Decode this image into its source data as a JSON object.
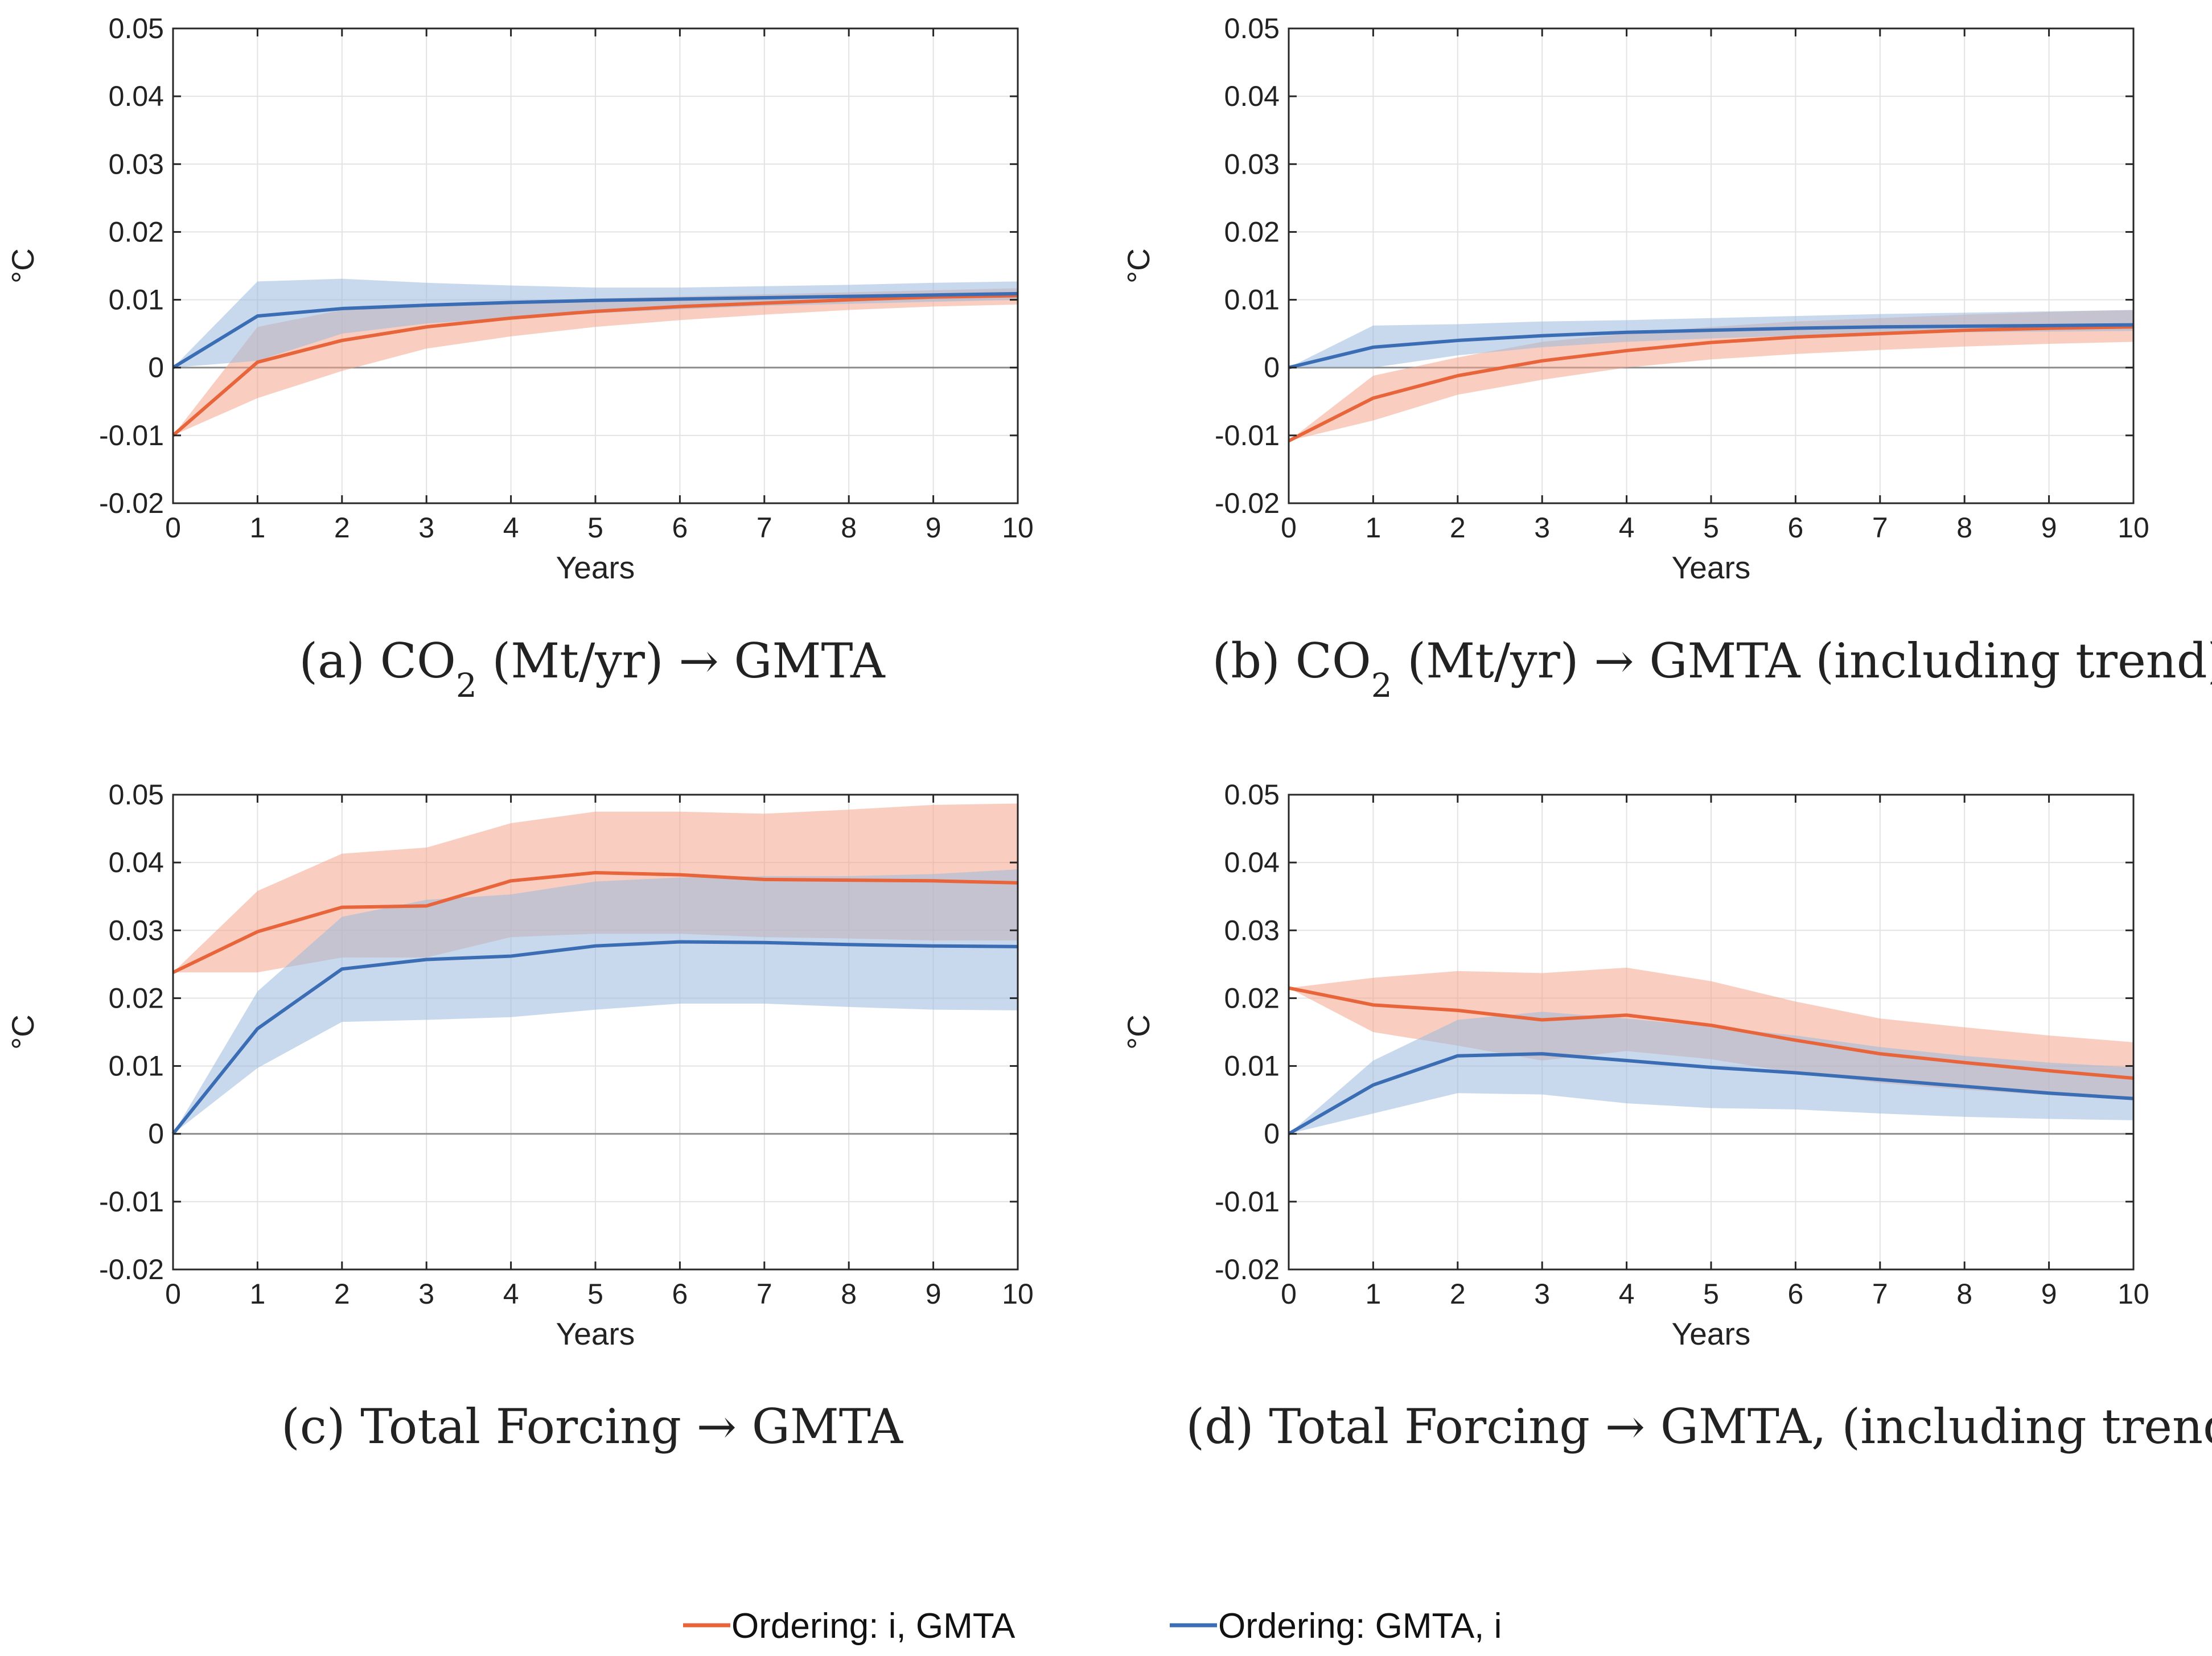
{
  "colors": {
    "orange": "#E8643A",
    "orange_band": "#F4A58C",
    "blue": "#3B6DB4",
    "blue_band": "#9DB9DF",
    "grid": "#E3E3E3",
    "axis": "#262626",
    "zero_line": "#8C8C8C"
  },
  "legend": {
    "items": [
      {
        "label": "Ordering: i, GMTA",
        "color": "#E8643A"
      },
      {
        "label": "Ordering: GMTA, i",
        "color": "#3B6DB4"
      }
    ]
  },
  "chart_data": [
    {
      "type": "line",
      "caption_prefix": "(a) CO",
      "caption_sub": "2",
      "caption_suffix": " (Mt/yr) → GMTA",
      "xlabel": "Years",
      "ylabel": "°C",
      "xlim": [
        0,
        10
      ],
      "ylim": [
        -0.02,
        0.05
      ],
      "xticks": [
        "0",
        "1",
        "2",
        "3",
        "4",
        "5",
        "6",
        "7",
        "8",
        "9",
        "10"
      ],
      "yticks": [
        "-0.02",
        "-0.01",
        "0",
        "0.01",
        "0.02",
        "0.03",
        "0.04",
        "0.05"
      ],
      "x": [
        0,
        1,
        2,
        3,
        4,
        5,
        6,
        7,
        8,
        9,
        10
      ],
      "series": [
        {
          "name": "Ordering: i, GMTA",
          "color": "orange",
          "values": [
            -0.01,
            0.0008,
            0.004,
            0.006,
            0.0073,
            0.0083,
            0.009,
            0.0095,
            0.01,
            0.0104,
            0.0106
          ],
          "lower": [
            -0.01,
            -0.0045,
            -0.0005,
            0.0028,
            0.0046,
            0.006,
            0.007,
            0.0078,
            0.0085,
            0.009,
            0.0093
          ],
          "upper": [
            -0.01,
            0.006,
            0.0085,
            0.0093,
            0.0098,
            0.0102,
            0.0105,
            0.0108,
            0.0111,
            0.0114,
            0.0117
          ]
        },
        {
          "name": "Ordering: GMTA, i",
          "color": "blue",
          "values": [
            0.0,
            0.0076,
            0.0087,
            0.0092,
            0.0096,
            0.0099,
            0.0101,
            0.0103,
            0.0105,
            0.0107,
            0.0109
          ],
          "lower": [
            0.0,
            0.001,
            0.005,
            0.0065,
            0.0073,
            0.008,
            0.0086,
            0.0091,
            0.0094,
            0.0097,
            0.01
          ],
          "upper": [
            0.0,
            0.0127,
            0.0131,
            0.0125,
            0.0121,
            0.0118,
            0.0118,
            0.012,
            0.0122,
            0.0125,
            0.0127
          ]
        }
      ]
    },
    {
      "type": "line",
      "caption_prefix": "(b) CO",
      "caption_sub": "2",
      "caption_suffix": " (Mt/yr) → GMTA (including trend)",
      "xlabel": "Years",
      "ylabel": "°C",
      "xlim": [
        0,
        10
      ],
      "ylim": [
        -0.02,
        0.05
      ],
      "xticks": [
        "0",
        "1",
        "2",
        "3",
        "4",
        "5",
        "6",
        "7",
        "8",
        "9",
        "10"
      ],
      "yticks": [
        "-0.02",
        "-0.01",
        "0",
        "0.01",
        "0.02",
        "0.03",
        "0.04",
        "0.05"
      ],
      "x": [
        0,
        1,
        2,
        3,
        4,
        5,
        6,
        7,
        8,
        9,
        10
      ],
      "series": [
        {
          "name": "Ordering: i, GMTA",
          "color": "orange",
          "values": [
            -0.0108,
            -0.0045,
            -0.0012,
            0.001,
            0.0025,
            0.0037,
            0.0045,
            0.005,
            0.0055,
            0.0058,
            0.006
          ],
          "lower": [
            -0.0108,
            -0.0078,
            -0.004,
            -0.0018,
            0.0,
            0.0012,
            0.002,
            0.0026,
            0.0031,
            0.0035,
            0.0038
          ],
          "upper": [
            -0.0108,
            -0.0012,
            0.0015,
            0.0038,
            0.005,
            0.006,
            0.0068,
            0.0073,
            0.0078,
            0.0082,
            0.0085
          ]
        },
        {
          "name": "Ordering: GMTA, i",
          "color": "blue",
          "values": [
            0.0,
            0.003,
            0.004,
            0.0047,
            0.0052,
            0.0055,
            0.0058,
            0.006,
            0.0061,
            0.0062,
            0.0063
          ],
          "lower": [
            0.0,
            0.0,
            0.0018,
            0.003,
            0.0038,
            0.0043,
            0.0047,
            0.005,
            0.0052,
            0.0053,
            0.0054
          ],
          "upper": [
            0.0,
            0.0062,
            0.0064,
            0.0068,
            0.007,
            0.0073,
            0.0076,
            0.0079,
            0.0081,
            0.0083,
            0.0085
          ]
        }
      ]
    },
    {
      "type": "line",
      "caption_prefix": "(c) Total Forcing → GMTA",
      "caption_sub": "",
      "caption_suffix": "",
      "xlabel": "Years",
      "ylabel": "°C",
      "xlim": [
        0,
        10
      ],
      "ylim": [
        -0.02,
        0.05
      ],
      "xticks": [
        "0",
        "1",
        "2",
        "3",
        "4",
        "5",
        "6",
        "7",
        "8",
        "9",
        "10"
      ],
      "yticks": [
        "-0.02",
        "-0.01",
        "0",
        "0.01",
        "0.02",
        "0.03",
        "0.04",
        "0.05"
      ],
      "x": [
        0,
        1,
        2,
        3,
        4,
        5,
        6,
        7,
        8,
        9,
        10
      ],
      "series": [
        {
          "name": "Ordering: i, GMTA",
          "color": "orange",
          "values": [
            0.0238,
            0.0298,
            0.0334,
            0.0336,
            0.0373,
            0.0385,
            0.0382,
            0.0375,
            0.0374,
            0.0373,
            0.037
          ],
          "lower": [
            0.0238,
            0.0238,
            0.026,
            0.026,
            0.029,
            0.0295,
            0.0295,
            0.029,
            0.0288,
            0.0285,
            0.0285
          ],
          "upper": [
            0.0238,
            0.0358,
            0.0413,
            0.0422,
            0.0458,
            0.0475,
            0.0475,
            0.0472,
            0.0478,
            0.0485,
            0.0487
          ]
        },
        {
          "name": "Ordering: GMTA, i",
          "color": "blue",
          "values": [
            0.0,
            0.0155,
            0.0243,
            0.0257,
            0.0262,
            0.0277,
            0.0283,
            0.0282,
            0.0279,
            0.0277,
            0.0276
          ],
          "lower": [
            0.0,
            0.0097,
            0.0165,
            0.0168,
            0.0172,
            0.0183,
            0.0192,
            0.0192,
            0.0187,
            0.0183,
            0.0182
          ],
          "upper": [
            0.0,
            0.021,
            0.032,
            0.0345,
            0.0353,
            0.0372,
            0.0378,
            0.038,
            0.038,
            0.0383,
            0.039
          ]
        }
      ]
    },
    {
      "type": "line",
      "caption_prefix": "(d) Total Forcing → GMTA, (including trend)",
      "caption_sub": "",
      "caption_suffix": "",
      "xlabel": "Years",
      "ylabel": "°C",
      "xlim": [
        0,
        10
      ],
      "ylim": [
        -0.02,
        0.05
      ],
      "xticks": [
        "0",
        "1",
        "2",
        "3",
        "4",
        "5",
        "6",
        "7",
        "8",
        "9",
        "10"
      ],
      "yticks": [
        "-0.02",
        "-0.01",
        "0",
        "0.01",
        "0.02",
        "0.03",
        "0.04",
        "0.05"
      ],
      "x": [
        0,
        1,
        2,
        3,
        4,
        5,
        6,
        7,
        8,
        9,
        10
      ],
      "series": [
        {
          "name": "Ordering: i, GMTA",
          "color": "orange",
          "values": [
            0.0215,
            0.019,
            0.0182,
            0.0168,
            0.0175,
            0.016,
            0.0138,
            0.0118,
            0.0105,
            0.0093,
            0.0082
          ],
          "lower": [
            0.0215,
            0.015,
            0.013,
            0.0108,
            0.0122,
            0.011,
            0.009,
            0.0075,
            0.0065,
            0.0057,
            0.005
          ],
          "upper": [
            0.0215,
            0.023,
            0.024,
            0.0237,
            0.0245,
            0.0225,
            0.0195,
            0.017,
            0.0157,
            0.0145,
            0.0135
          ]
        },
        {
          "name": "Ordering: GMTA, i",
          "color": "blue",
          "values": [
            0.0,
            0.0072,
            0.0115,
            0.0118,
            0.0108,
            0.0098,
            0.009,
            0.008,
            0.007,
            0.006,
            0.0052
          ],
          "lower": [
            0.0,
            0.003,
            0.006,
            0.0058,
            0.0045,
            0.0038,
            0.0036,
            0.003,
            0.0025,
            0.0022,
            0.002
          ],
          "upper": [
            0.0,
            0.0108,
            0.0168,
            0.018,
            0.017,
            0.0158,
            0.0145,
            0.0128,
            0.0115,
            0.0105,
            0.0098
          ]
        }
      ]
    }
  ]
}
